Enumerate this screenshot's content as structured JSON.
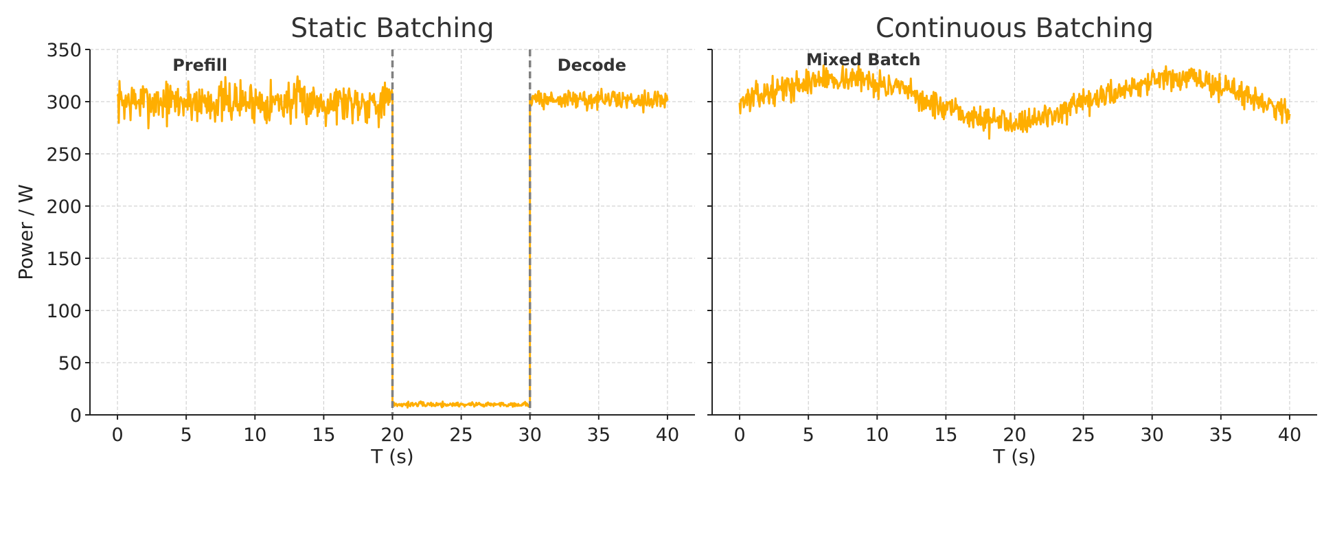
{
  "colors": {
    "series": "#ffae00",
    "phase_line": "#808080",
    "grid": "#c8c8c8",
    "axis": "#222222"
  },
  "chart_data": [
    {
      "type": "line",
      "title": "Static Batching",
      "xlabel": "T (s)",
      "ylabel": "Power / W",
      "xlim": [
        -2,
        42
      ],
      "ylim": [
        0,
        350
      ],
      "xticks": [
        0,
        5,
        10,
        15,
        20,
        25,
        30,
        35,
        40
      ],
      "yticks": [
        0,
        50,
        100,
        150,
        200,
        250,
        300,
        350
      ],
      "grid": true,
      "vlines": [
        20,
        30
      ],
      "annotations": [
        {
          "text": "Prefill",
          "x": 6,
          "y": 335
        },
        {
          "text": "Decode",
          "x": 34.5,
          "y": 335
        }
      ],
      "series": [
        {
          "noise_seed": 7,
          "segments": [
            {
              "x_start": 0,
              "x_end": 20,
              "y": 300,
              "noise": 10
            },
            {
              "x_start": 20,
              "x_end": 30,
              "y": 10,
              "noise": 1.2
            },
            {
              "x_start": 30,
              "x_end": 40,
              "y": 302,
              "noise": 4.5
            }
          ]
        }
      ]
    },
    {
      "type": "line",
      "title": "Continuous Batching",
      "xlabel": "T (s)",
      "ylabel": "",
      "xlim": [
        -2,
        42
      ],
      "ylim": [
        0,
        350
      ],
      "xticks": [
        0,
        5,
        10,
        15,
        20,
        25,
        30,
        35,
        40
      ],
      "yticks": [
        0,
        50,
        100,
        150,
        200,
        250,
        300,
        350
      ],
      "grid": true,
      "vlines": [],
      "annotations": [
        {
          "text": "Mixed Batch",
          "x": 9,
          "y": 340
        }
      ],
      "series": [
        {
          "noise_seed": 13,
          "trend": {
            "x": [
              0,
              3,
              6,
              9,
              12,
              15,
              18,
              21,
              24,
              27,
              30,
              33,
              36,
              39,
              40
            ],
            "y": [
              300,
              312,
              322,
              322,
              310,
              292,
              282,
              282,
              292,
              308,
              320,
              322,
              310,
              296,
              290
            ]
          },
          "noise": 6
        }
      ]
    }
  ]
}
